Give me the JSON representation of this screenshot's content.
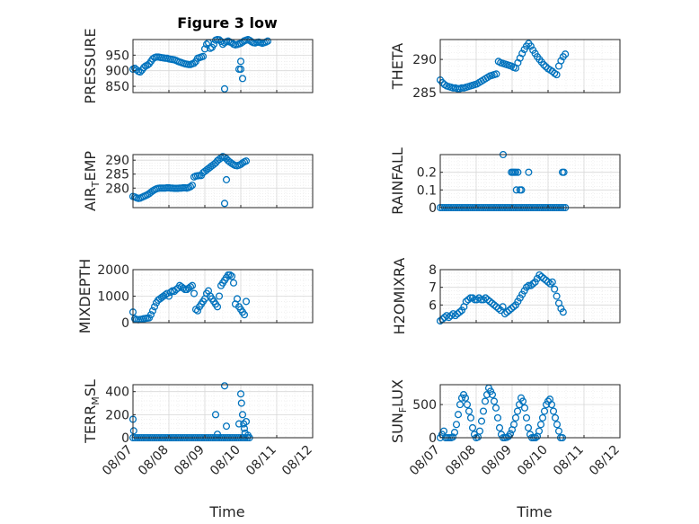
{
  "title": "Figure 3 low",
  "xlabel": "Time",
  "x_ticks": [
    "08/07",
    "08/08",
    "08/09",
    "08/10",
    "08/11",
    "08/12"
  ],
  "colors": {
    "marker": "#0072BD",
    "grid": "#d8d8d8",
    "axis": "#262626"
  },
  "chart_data": [
    {
      "id": "pressure",
      "type": "scatter",
      "ylabel": "PRESSURE",
      "title": "Figure 3 low",
      "ylim": [
        830,
        1000
      ],
      "yticks": [
        850,
        900,
        950
      ],
      "grid": true,
      "x": [
        0.0,
        0.05,
        0.1,
        0.15,
        0.2,
        0.25,
        0.3,
        0.35,
        0.4,
        0.45,
        0.5,
        0.55,
        0.6,
        0.65,
        0.7,
        0.75,
        0.8,
        0.85,
        0.9,
        0.95,
        1.0,
        1.05,
        1.1,
        1.15,
        1.2,
        1.25,
        1.3,
        1.35,
        1.4,
        1.45,
        1.5,
        1.55,
        1.6,
        1.65,
        1.7,
        1.75,
        1.8,
        1.85,
        1.9,
        1.95,
        2.0,
        2.05,
        2.1,
        2.15,
        2.2,
        2.25,
        2.3,
        2.35,
        2.4,
        2.45,
        2.5,
        2.55,
        2.6,
        2.65,
        2.7,
        2.75,
        2.8,
        2.85,
        2.9,
        2.95,
        3.0,
        3.05,
        3.1,
        3.15,
        3.2,
        3.25,
        3.3,
        3.35,
        3.4,
        3.45,
        3.5,
        3.55,
        3.6,
        3.65,
        3.7,
        3.75,
        2.55,
        2.95,
        3.0,
        3.05,
        3.0
      ],
      "y": [
        905,
        908,
        903,
        898,
        896,
        902,
        910,
        915,
        918,
        922,
        930,
        938,
        942,
        944,
        944,
        943,
        942,
        941,
        940,
        940,
        938,
        937,
        936,
        935,
        933,
        930,
        928,
        926,
        924,
        922,
        921,
        920,
        920,
        922,
        924,
        930,
        940,
        942,
        944,
        946,
        970,
        985,
        990,
        972,
        975,
        985,
        998,
        1000,
        999,
        994,
        985,
        990,
        993,
        995,
        992,
        990,
        985,
        983,
        984,
        986,
        988,
        992,
        996,
        998,
        1000,
        997,
        993,
        990,
        989,
        991,
        992,
        990,
        988,
        990,
        992,
        995,
        842,
        905,
        905,
        875,
        930
      ]
    },
    {
      "id": "theta",
      "type": "scatter",
      "ylabel": "THETA",
      "ylim": [
        285,
        293
      ],
      "yticks": [
        285,
        290
      ],
      "grid": true,
      "x": [
        0.0,
        0.06,
        0.12,
        0.18,
        0.24,
        0.3,
        0.36,
        0.42,
        0.48,
        0.54,
        0.6,
        0.66,
        0.72,
        0.78,
        0.84,
        0.9,
        0.96,
        1.02,
        1.08,
        1.14,
        1.2,
        1.26,
        1.32,
        1.38,
        1.44,
        1.5,
        1.56,
        1.62,
        1.68,
        1.74,
        1.8,
        1.86,
        1.92,
        1.98,
        2.04,
        2.1,
        2.16,
        2.22,
        2.28,
        2.34,
        2.4,
        2.46,
        2.52,
        2.58,
        2.64,
        2.7,
        2.76,
        2.82,
        2.88,
        2.94,
        3.0,
        3.06,
        3.12,
        3.18,
        3.24,
        3.3,
        3.36,
        3.42,
        3.48
      ],
      "y": [
        286.9,
        286.5,
        286.2,
        286.0,
        285.9,
        285.8,
        285.7,
        285.7,
        285.6,
        285.6,
        285.7,
        285.7,
        285.8,
        285.9,
        286.0,
        286.1,
        286.2,
        286.3,
        286.5,
        286.7,
        286.9,
        287.1,
        287.3,
        287.5,
        287.6,
        287.7,
        287.8,
        289.7,
        289.5,
        289.4,
        289.3,
        289.2,
        289.1,
        289.0,
        288.8,
        288.7,
        289.5,
        290.2,
        290.9,
        291.5,
        292.0,
        292.4,
        292.0,
        291.4,
        290.9,
        290.4,
        290.0,
        289.6,
        289.2,
        288.9,
        288.6,
        288.4,
        288.2,
        287.9,
        287.7,
        289.0,
        289.8,
        290.4,
        290.8
      ]
    },
    {
      "id": "air_temp",
      "type": "scatter",
      "ylabel": "AIR_TEMP",
      "ylim": [
        273,
        292
      ],
      "yticks": [
        280,
        285,
        290
      ],
      "grid": true,
      "x": [
        0.0,
        0.05,
        0.1,
        0.15,
        0.2,
        0.25,
        0.3,
        0.35,
        0.4,
        0.45,
        0.5,
        0.55,
        0.6,
        0.65,
        0.7,
        0.75,
        0.8,
        0.85,
        0.9,
        0.95,
        1.0,
        1.05,
        1.1,
        1.15,
        1.2,
        1.25,
        1.3,
        1.35,
        1.4,
        1.45,
        1.5,
        1.55,
        1.6,
        1.65,
        1.7,
        1.75,
        1.8,
        1.85,
        1.9,
        1.95,
        2.0,
        2.05,
        2.1,
        2.15,
        2.2,
        2.25,
        2.3,
        2.35,
        2.4,
        2.45,
        2.5,
        2.55,
        2.6,
        2.65,
        2.7,
        2.75,
        2.8,
        2.85,
        2.9,
        2.95,
        3.0,
        3.05,
        3.1,
        3.15,
        2.55,
        2.6
      ],
      "y": [
        277.0,
        276.8,
        276.5,
        276.3,
        276.4,
        276.7,
        277.0,
        277.3,
        277.6,
        278.0,
        278.5,
        279.0,
        279.4,
        279.7,
        279.9,
        280.0,
        280.0,
        280.0,
        280.0,
        280.1,
        280.1,
        280.0,
        280.0,
        279.9,
        279.9,
        279.9,
        280.0,
        280.0,
        280.1,
        280.1,
        280.0,
        280.2,
        280.5,
        281.0,
        284.0,
        284.3,
        284.4,
        284.5,
        284.5,
        285.5,
        286.0,
        286.5,
        287.0,
        287.5,
        288.0,
        288.5,
        289.0,
        289.8,
        290.3,
        290.8,
        291.3,
        291.0,
        290.5,
        289.8,
        289.3,
        288.8,
        288.4,
        288.1,
        288.0,
        288.2,
        288.5,
        289.0,
        289.4,
        289.7,
        274.5,
        283.0
      ]
    },
    {
      "id": "rainfall",
      "type": "scatter",
      "ylabel": "RAINFALL",
      "ylim": [
        0,
        0.3
      ],
      "yticks": [
        0,
        0.1,
        0.2
      ],
      "grid": true,
      "x": [
        0.0,
        0.06,
        0.12,
        0.18,
        0.24,
        0.3,
        0.36,
        0.42,
        0.48,
        0.54,
        0.6,
        0.66,
        0.72,
        0.78,
        0.84,
        0.9,
        0.96,
        1.02,
        1.08,
        1.14,
        1.2,
        1.26,
        1.32,
        1.38,
        1.44,
        1.5,
        1.56,
        1.62,
        1.68,
        1.74,
        1.8,
        1.86,
        1.92,
        1.98,
        2.04,
        2.1,
        2.16,
        2.22,
        2.28,
        2.34,
        2.4,
        2.46,
        2.52,
        2.58,
        2.64,
        2.7,
        2.76,
        2.82,
        2.88,
        2.94,
        3.0,
        3.06,
        3.12,
        3.18,
        3.24,
        3.3,
        3.36,
        3.42,
        3.48,
        1.98,
        2.02,
        2.06,
        2.1,
        2.16,
        2.22,
        2.26,
        2.12,
        2.46,
        3.4,
        3.44,
        1.75
      ],
      "y": [
        0,
        0,
        0,
        0,
        0,
        0,
        0,
        0,
        0,
        0,
        0,
        0,
        0,
        0,
        0,
        0,
        0,
        0,
        0,
        0,
        0,
        0,
        0,
        0,
        0,
        0,
        0,
        0,
        0,
        0,
        0,
        0,
        0,
        0,
        0,
        0,
        0,
        0,
        0,
        0,
        0,
        0,
        0,
        0,
        0,
        0,
        0,
        0,
        0,
        0,
        0,
        0,
        0,
        0,
        0,
        0,
        0,
        0,
        0,
        0.2,
        0.2,
        0.2,
        0.2,
        0.2,
        0.1,
        0.1,
        0.1,
        0.2,
        0.2,
        0.2,
        0.3
      ]
    },
    {
      "id": "mixdepth",
      "type": "scatter",
      "ylabel": "MIXDEPTH",
      "ylim": [
        0,
        2000
      ],
      "yticks": [
        0,
        1000,
        2000
      ],
      "grid": true,
      "x": [
        0.0,
        0.05,
        0.1,
        0.15,
        0.2,
        0.25,
        0.3,
        0.35,
        0.4,
        0.45,
        0.5,
        0.55,
        0.6,
        0.65,
        0.7,
        0.75,
        0.8,
        0.85,
        0.9,
        0.95,
        1.0,
        1.05,
        1.1,
        1.15,
        1.2,
        1.25,
        1.3,
        1.35,
        1.4,
        1.45,
        1.5,
        1.55,
        1.6,
        1.65,
        1.7,
        1.75,
        1.8,
        1.85,
        1.9,
        1.95,
        2.0,
        2.05,
        2.1,
        2.15,
        2.2,
        2.25,
        2.3,
        2.35,
        2.4,
        2.45,
        2.5,
        2.55,
        2.6,
        2.65,
        2.7,
        2.75,
        2.8,
        2.85,
        2.9,
        2.95,
        3.0,
        3.05,
        3.1,
        3.15
      ],
      "y": [
        400,
        150,
        120,
        110,
        120,
        130,
        150,
        160,
        170,
        180,
        300,
        450,
        600,
        750,
        850,
        900,
        950,
        1000,
        1050,
        1100,
        1000,
        1150,
        1200,
        1180,
        1250,
        1300,
        1400,
        1350,
        1300,
        1250,
        1250,
        1300,
        1350,
        1400,
        1100,
        500,
        450,
        600,
        700,
        800,
        900,
        1100,
        1200,
        1000,
        900,
        800,
        700,
        600,
        1000,
        1400,
        1500,
        1600,
        1700,
        1800,
        1800,
        1750,
        1500,
        700,
        900,
        600,
        500,
        400,
        300,
        800
      ]
    },
    {
      "id": "h2omixra",
      "type": "scatter",
      "ylabel": "H2OMIXRA",
      "ylim": [
        5,
        8
      ],
      "yticks": [
        6,
        7,
        8
      ],
      "grid": true,
      "x": [
        0.0,
        0.06,
        0.12,
        0.18,
        0.24,
        0.3,
        0.36,
        0.42,
        0.48,
        0.54,
        0.6,
        0.66,
        0.72,
        0.78,
        0.84,
        0.9,
        0.96,
        1.02,
        1.08,
        1.14,
        1.2,
        1.26,
        1.32,
        1.38,
        1.44,
        1.5,
        1.56,
        1.62,
        1.68,
        1.74,
        1.8,
        1.86,
        1.92,
        1.98,
        2.04,
        2.1,
        2.16,
        2.22,
        2.28,
        2.34,
        2.4,
        2.46,
        2.52,
        2.58,
        2.64,
        2.7,
        2.76,
        2.82,
        2.88,
        2.94,
        3.0,
        3.06,
        3.12,
        3.18,
        3.24,
        3.3,
        3.36,
        3.42
      ],
      "y": [
        5.1,
        5.2,
        5.3,
        5.4,
        5.3,
        5.4,
        5.5,
        5.4,
        5.5,
        5.6,
        5.7,
        5.9,
        6.2,
        6.3,
        6.4,
        6.4,
        6.3,
        6.3,
        6.4,
        6.3,
        6.3,
        6.4,
        6.3,
        6.2,
        6.1,
        6.0,
        5.9,
        5.8,
        5.7,
        5.9,
        5.5,
        5.6,
        5.7,
        5.8,
        5.9,
        6.0,
        6.2,
        6.4,
        6.6,
        6.8,
        7.0,
        7.1,
        7.1,
        7.2,
        7.3,
        7.5,
        7.7,
        7.6,
        7.5,
        7.4,
        7.3,
        7.2,
        7.3,
        6.9,
        6.5,
        6.1,
        5.8,
        5.6
      ]
    },
    {
      "id": "terr_msl",
      "type": "scatter",
      "ylabel": "TERR_MSL",
      "ylim": [
        0,
        460
      ],
      "yticks": [
        0,
        200,
        400
      ],
      "grid": true,
      "x": [
        0.0,
        0.06,
        0.12,
        0.18,
        0.24,
        0.3,
        0.36,
        0.42,
        0.48,
        0.54,
        0.6,
        0.66,
        0.72,
        0.78,
        0.84,
        0.9,
        0.96,
        1.02,
        1.08,
        1.14,
        1.2,
        1.26,
        1.32,
        1.38,
        1.44,
        1.5,
        1.56,
        1.62,
        1.68,
        1.74,
        1.8,
        1.86,
        1.92,
        1.98,
        2.04,
        2.1,
        2.16,
        2.22,
        2.28,
        2.34,
        2.4,
        2.46,
        2.52,
        2.58,
        2.64,
        2.7,
        2.76,
        2.82,
        2.88,
        2.94,
        3.0,
        3.06,
        3.12,
        3.18,
        3.24,
        0.0,
        0.02,
        2.55,
        2.6,
        2.95,
        3.0,
        3.02,
        3.05,
        3.08,
        3.1,
        3.12,
        3.15,
        3.2,
        2.3,
        2.35
      ],
      "y": [
        0,
        0,
        0,
        0,
        0,
        0,
        0,
        0,
        0,
        0,
        0,
        0,
        0,
        0,
        0,
        0,
        0,
        0,
        0,
        0,
        0,
        0,
        0,
        0,
        0,
        0,
        0,
        0,
        0,
        0,
        0,
        0,
        0,
        0,
        0,
        0,
        0,
        0,
        0,
        0,
        0,
        0,
        0,
        0,
        0,
        0,
        0,
        0,
        0,
        0,
        0,
        0,
        0,
        0,
        0,
        160,
        60,
        450,
        100,
        120,
        380,
        300,
        200,
        120,
        80,
        40,
        140,
        20,
        200,
        30
      ]
    },
    {
      "id": "sun_flux",
      "type": "scatter",
      "ylabel": "SUN_FLUX",
      "ylim": [
        0,
        800
      ],
      "yticks": [
        0,
        500
      ],
      "grid": true,
      "x": [
        0.0,
        0.05,
        0.1,
        0.15,
        0.2,
        0.25,
        0.3,
        0.35,
        0.4,
        0.45,
        0.5,
        0.55,
        0.6,
        0.65,
        0.7,
        0.75,
        0.8,
        0.85,
        0.9,
        0.95,
        1.0,
        1.05,
        1.1,
        1.15,
        1.2,
        1.25,
        1.3,
        1.35,
        1.4,
        1.45,
        1.5,
        1.55,
        1.6,
        1.65,
        1.7,
        1.75,
        1.8,
        1.85,
        1.9,
        1.95,
        2.0,
        2.05,
        2.1,
        2.15,
        2.2,
        2.25,
        2.3,
        2.35,
        2.4,
        2.45,
        2.5,
        2.55,
        2.6,
        2.65,
        2.7,
        2.75,
        2.8,
        2.85,
        2.9,
        2.95,
        3.0,
        3.05,
        3.1,
        3.15,
        3.2,
        3.25,
        3.3,
        3.35,
        3.4
      ],
      "y": [
        0,
        50,
        100,
        0,
        0,
        0,
        0,
        10,
        80,
        200,
        350,
        500,
        600,
        650,
        600,
        500,
        400,
        300,
        150,
        50,
        0,
        10,
        100,
        250,
        400,
        550,
        650,
        750,
        700,
        650,
        550,
        450,
        300,
        150,
        50,
        0,
        0,
        5,
        20,
        60,
        120,
        200,
        300,
        400,
        500,
        600,
        550,
        450,
        300,
        150,
        50,
        0,
        0,
        0,
        20,
        100,
        200,
        300,
        400,
        500,
        550,
        580,
        500,
        400,
        300,
        200,
        100,
        0,
        0
      ]
    }
  ]
}
